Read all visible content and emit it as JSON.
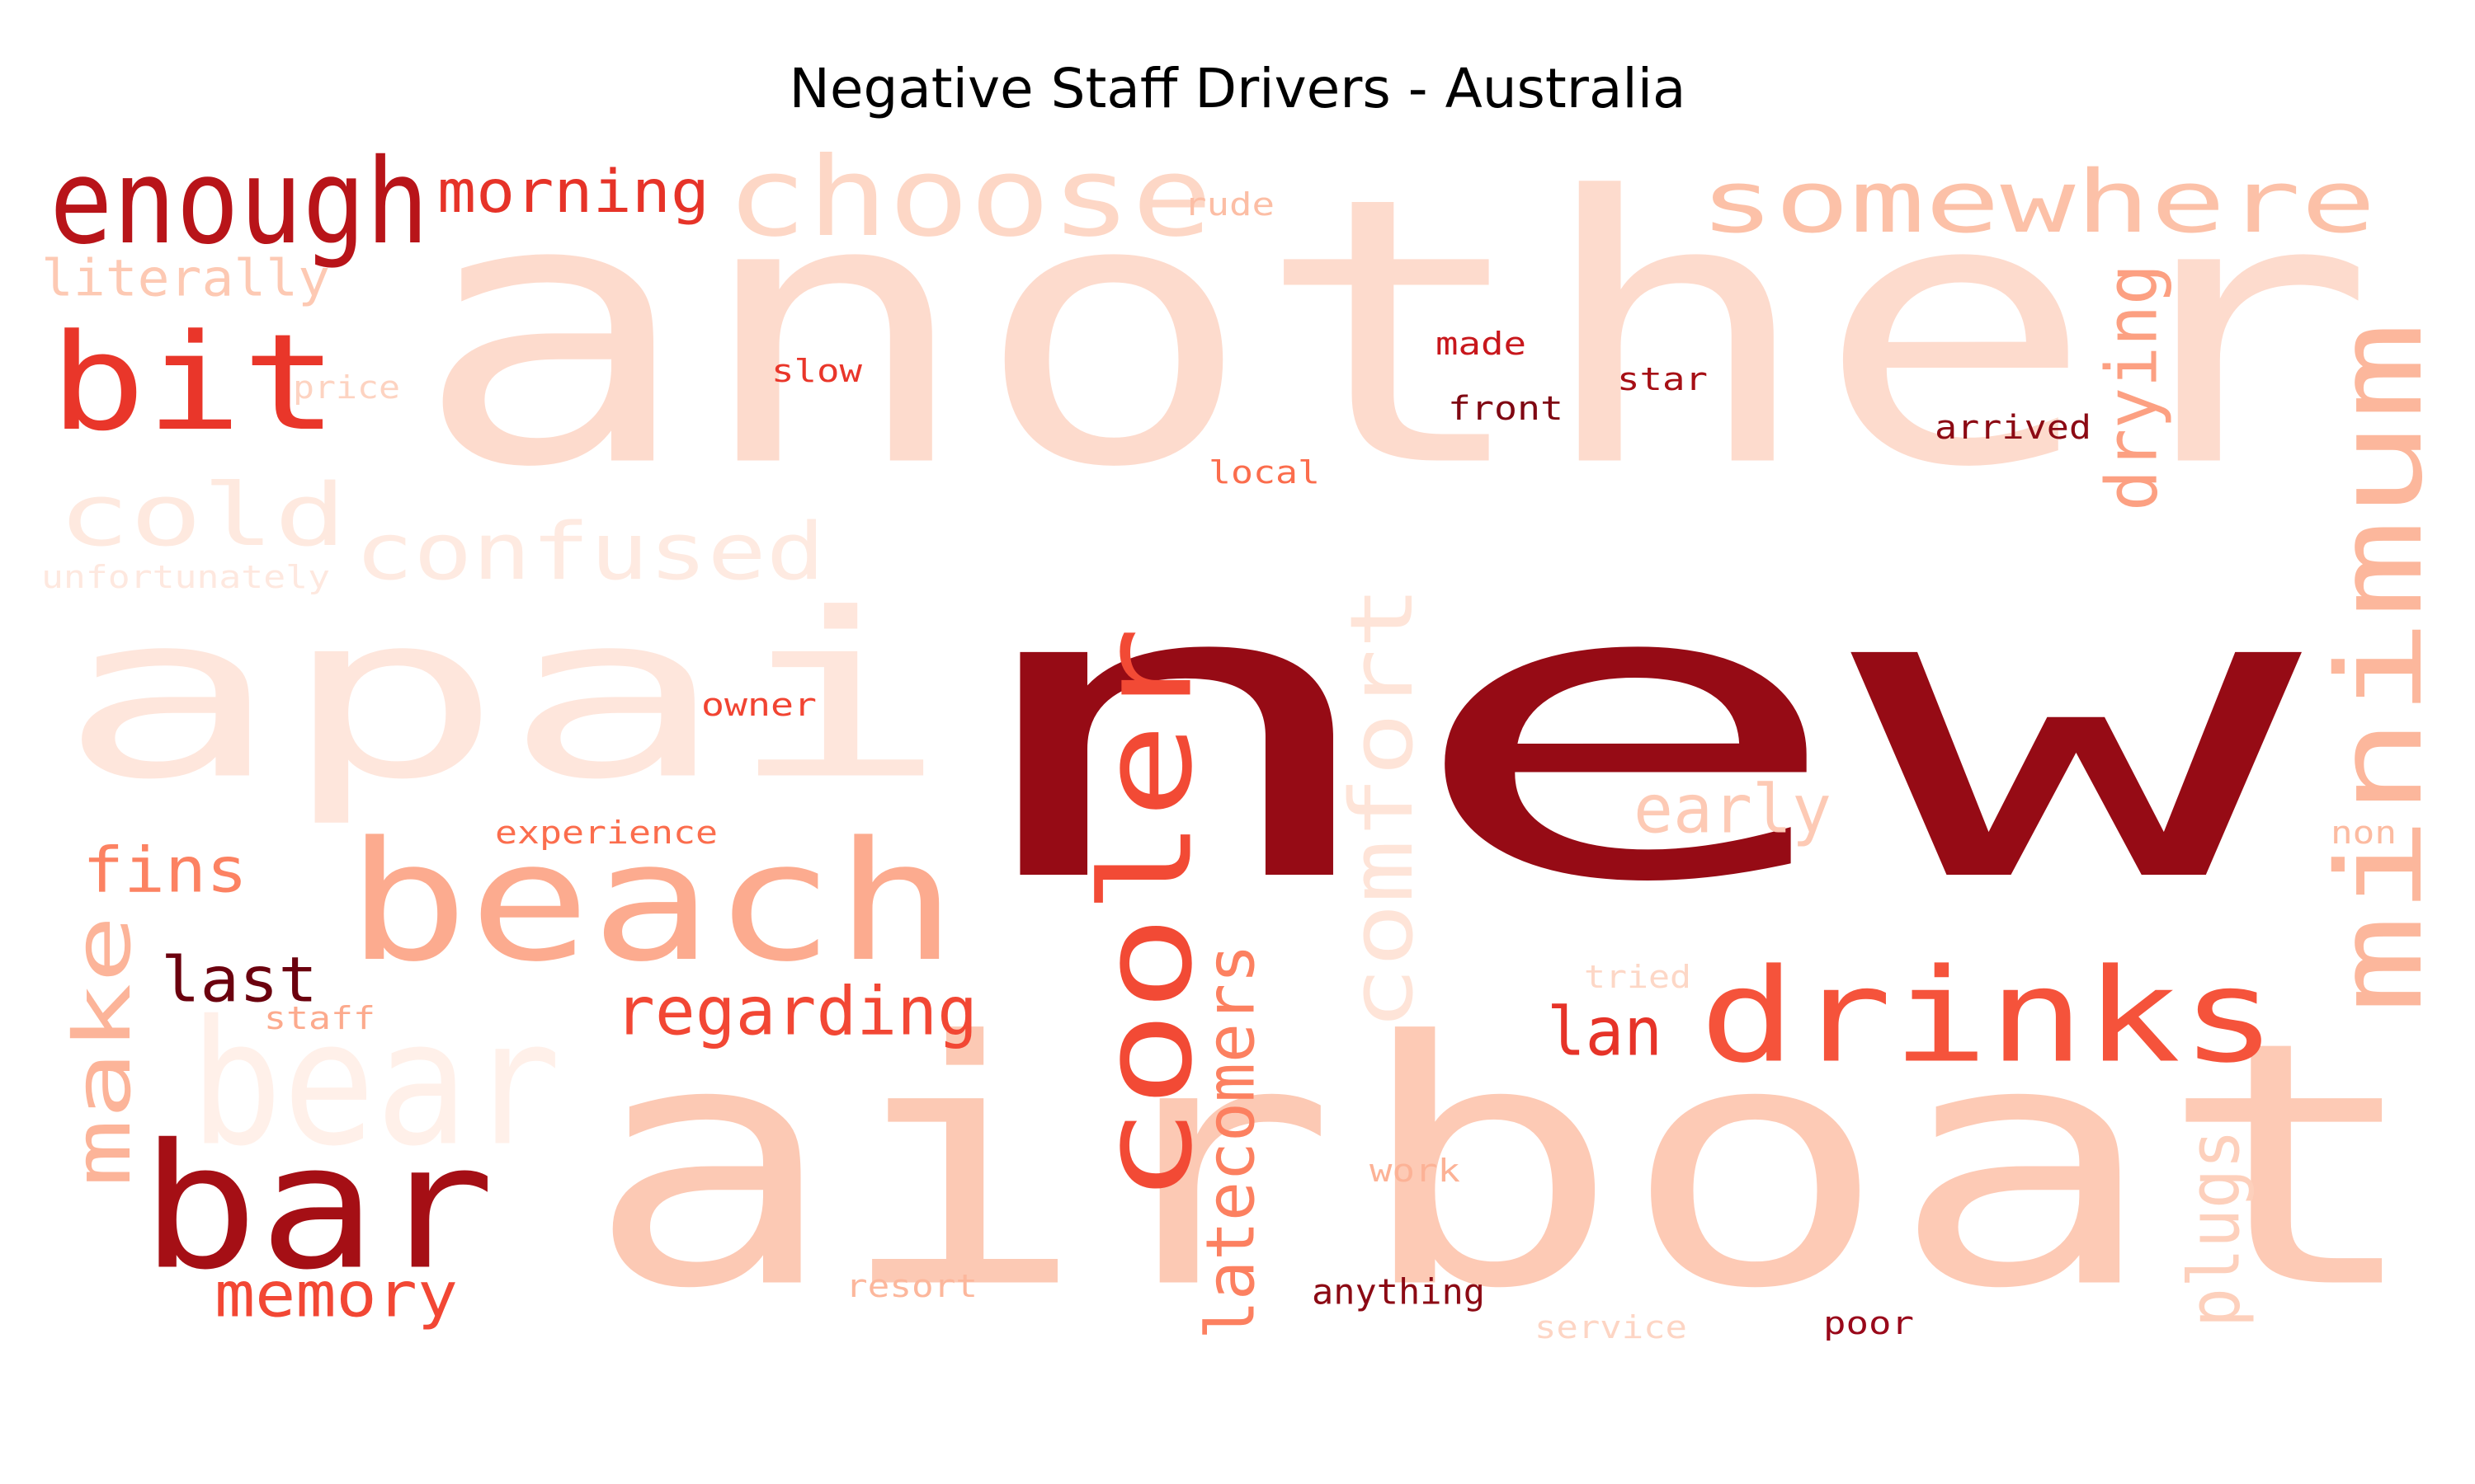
{
  "title": "Negative Staff Drivers - Australia",
  "colormap": "Reds",
  "words": [
    {
      "text": "another",
      "color": "#fddbcd",
      "rotated": false
    },
    {
      "text": "air",
      "color": "#fcc9b4",
      "rotated": false
    },
    {
      "text": "new",
      "color": "#960b15",
      "rotated": false
    },
    {
      "text": "boat",
      "color": "#fdcab5",
      "rotated": false
    },
    {
      "text": "apai",
      "color": "#fee6dc",
      "rotated": false
    },
    {
      "text": "beach",
      "color": "#fcab8f",
      "rotated": false
    },
    {
      "text": "choose",
      "color": "#fdd7c6",
      "rotated": false
    },
    {
      "text": "somewhere",
      "color": "#fcc1a8",
      "rotated": false
    },
    {
      "text": "enough",
      "color": "#b81419",
      "rotated": false
    },
    {
      "text": "morning",
      "color": "#e63328",
      "rotated": false
    },
    {
      "text": "bit",
      "color": "#e9362a",
      "rotated": false
    },
    {
      "text": "literally",
      "color": "#fdc9b3",
      "rotated": false
    },
    {
      "text": "price",
      "color": "#fdd3c1",
      "rotated": false
    },
    {
      "text": "cold",
      "color": "#fee9df",
      "rotated": false
    },
    {
      "text": "confused",
      "color": "#feeae1",
      "rotated": false
    },
    {
      "text": "unfortunately",
      "color": "#fee8df",
      "rotated": false
    },
    {
      "text": "rude",
      "color": "#fcbea5",
      "rotated": false
    },
    {
      "text": "slow",
      "color": "#e9362a",
      "rotated": false
    },
    {
      "text": "made",
      "color": "#c8171c",
      "rotated": false
    },
    {
      "text": "star",
      "color": "#a60f15",
      "rotated": false
    },
    {
      "text": "front",
      "color": "#7f0712",
      "rotated": false
    },
    {
      "text": "arrived",
      "color": "#8c0a14",
      "rotated": false
    },
    {
      "text": "local",
      "color": "#fb6d4d",
      "rotated": false
    },
    {
      "text": "drying",
      "color": "#fca082",
      "rotated": true
    },
    {
      "text": "minimum",
      "color": "#fcb79c",
      "rotated": true
    },
    {
      "text": "cooler",
      "color": "#f24a35",
      "rotated": true
    },
    {
      "text": "comfort",
      "color": "#fee4d8",
      "rotated": true
    },
    {
      "text": "owner",
      "color": "#f14432",
      "rotated": false
    },
    {
      "text": "early",
      "color": "#fdcab5",
      "rotated": false
    },
    {
      "text": "non",
      "color": "#fcbba1",
      "rotated": false
    },
    {
      "text": "experience",
      "color": "#fb6d4d",
      "rotated": false
    },
    {
      "text": "fins",
      "color": "#fc8262",
      "rotated": false
    },
    {
      "text": "make",
      "color": "#fcb499",
      "rotated": true
    },
    {
      "text": "last",
      "color": "#6b010e",
      "rotated": false
    },
    {
      "text": "staff",
      "color": "#fcaa8d",
      "rotated": false
    },
    {
      "text": "regarding",
      "color": "#f24734",
      "rotated": false
    },
    {
      "text": "drinks",
      "color": "#f5533b",
      "rotated": false
    },
    {
      "text": "lan",
      "color": "#e63328",
      "rotated": false
    },
    {
      "text": "tried",
      "color": "#fdd7c6",
      "rotated": false
    },
    {
      "text": "bear",
      "color": "#fff0e9",
      "rotated": false
    },
    {
      "text": "latecomers",
      "color": "#fc8060",
      "rotated": true
    },
    {
      "text": "plugs",
      "color": "#fdd0bc",
      "rotated": true
    },
    {
      "text": "work",
      "color": "#fcb296",
      "rotated": false
    },
    {
      "text": "bar",
      "color": "#a50f15",
      "rotated": false
    },
    {
      "text": "memory",
      "color": "#f24734",
      "rotated": false
    },
    {
      "text": "resort",
      "color": "#fcb79c",
      "rotated": false
    },
    {
      "text": "anything",
      "color": "#8c0a14",
      "rotated": false
    },
    {
      "text": "service",
      "color": "#fdd5c4",
      "rotated": false
    },
    {
      "text": "poor",
      "color": "#99081a",
      "rotated": false
    }
  ]
}
